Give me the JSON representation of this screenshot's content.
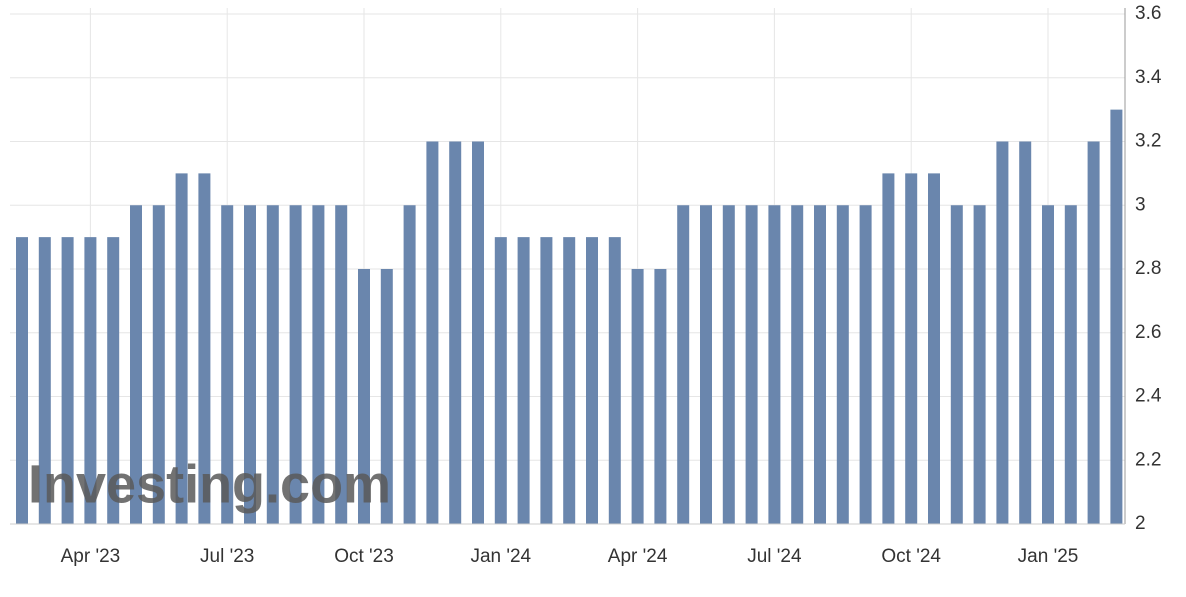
{
  "chart_data": {
    "type": "bar",
    "watermark": "Investing.com",
    "categories": [
      null,
      null,
      null,
      "Apr '23",
      null,
      null,
      null,
      null,
      null,
      "Jul '23",
      null,
      null,
      null,
      null,
      null,
      "Oct '23",
      null,
      null,
      null,
      null,
      null,
      "Jan '24",
      null,
      null,
      null,
      null,
      null,
      "Apr '24",
      null,
      null,
      null,
      null,
      null,
      "Jul '24",
      null,
      null,
      null,
      null,
      null,
      "Oct '24",
      null,
      null,
      null,
      null,
      null,
      "Jan '25",
      null,
      null,
      null
    ],
    "values": [
      2.9,
      2.9,
      2.9,
      2.9,
      2.9,
      3.0,
      3.0,
      3.1,
      3.1,
      3.0,
      3.0,
      3.0,
      3.0,
      3.0,
      3.0,
      2.8,
      2.8,
      3.0,
      3.2,
      3.2,
      3.2,
      2.9,
      2.9,
      2.9,
      2.9,
      2.9,
      2.9,
      2.8,
      2.8,
      3.0,
      3.0,
      3.0,
      3.0,
      3.0,
      3.0,
      3.0,
      3.0,
      3.0,
      3.1,
      3.1,
      3.1,
      3.0,
      3.0,
      3.2,
      3.2,
      3.0,
      3.0,
      3.2,
      3.3
    ],
    "color": "#6a86ad",
    "ylim": [
      2,
      3.6
    ],
    "yticks": [
      2,
      2.2,
      2.4,
      2.6,
      2.8,
      3,
      3.2,
      3.4,
      3.6
    ],
    "grid": true
  }
}
